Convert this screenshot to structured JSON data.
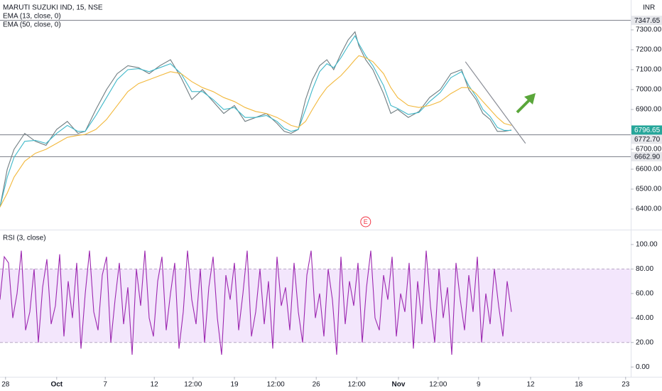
{
  "header": {
    "symbol": "MARUTI SUZUKI IND, 15, NSE",
    "currency": "INR",
    "indicators": [
      "EMA (13, close, 0)",
      "EMA (50, close, 0)"
    ]
  },
  "chart_data": [
    {
      "type": "line",
      "x": [
        0,
        1.7,
        3.3,
        5.8,
        8.3,
        10.8,
        13.3,
        15.8,
        18.3,
        20,
        22.5,
        25,
        27.5,
        30,
        32.5,
        35,
        37.5,
        40,
        42.5,
        45,
        47.5,
        50,
        52.5,
        55,
        57.5,
        60,
        62.5,
        65,
        66.7,
        68.3,
        70,
        71.7,
        73.3,
        75,
        76.7,
        78.3,
        80,
        81.7,
        83.3,
        84.2,
        85.8,
        87.5,
        90,
        91.7,
        93.3,
        95.8,
        98.3,
        100.8,
        103.3,
        105.8,
        108.3,
        110,
        111.7,
        113.3,
        115,
        116.7,
        118.3,
        120
      ],
      "series": [
        {
          "color": "#6f7c80",
          "values": [
            6410,
            6600,
            6700,
            6780,
            6740,
            6720,
            6800,
            6840,
            6780,
            6790,
            6900,
            7000,
            7080,
            7120,
            7110,
            7080,
            7120,
            7150,
            7060,
            6950,
            7000,
            6940,
            6880,
            6920,
            6840,
            6860,
            6880,
            6830,
            6790,
            6780,
            6800,
            6950,
            7050,
            7120,
            7150,
            7100,
            7180,
            7250,
            7290,
            7220,
            7150,
            7100,
            6980,
            6880,
            6900,
            6860,
            6890,
            6960,
            7000,
            7080,
            7100,
            7000,
            6950,
            6880,
            6850,
            6790,
            6790,
            6796.65
          ]
        },
        {
          "name": "EMA (13, close, 0)",
          "color": "#3fb8c9",
          "values": [
            6410,
            6560,
            6660,
            6740,
            6745,
            6730,
            6780,
            6820,
            6790,
            6790,
            6870,
            6960,
            7050,
            7100,
            7105,
            7090,
            7110,
            7130,
            7080,
            6990,
            6990,
            6950,
            6900,
            6910,
            6860,
            6860,
            6870,
            6840,
            6805,
            6790,
            6800,
            6900,
            7000,
            7090,
            7130,
            7110,
            7160,
            7220,
            7270,
            7230,
            7170,
            7120,
            7020,
            6920,
            6905,
            6875,
            6885,
            6940,
            6985,
            7060,
            7090,
            7020,
            6965,
            6900,
            6865,
            6810,
            6795,
            6795
          ]
        },
        {
          "name": "EMA (50, close, 0)",
          "color": "#f2b83c",
          "values": [
            6410,
            6480,
            6560,
            6640,
            6680,
            6700,
            6730,
            6760,
            6770,
            6775,
            6800,
            6850,
            6920,
            6990,
            7030,
            7050,
            7070,
            7090,
            7080,
            7040,
            7010,
            6990,
            6960,
            6940,
            6910,
            6890,
            6880,
            6860,
            6840,
            6820,
            6810,
            6840,
            6900,
            6960,
            7010,
            7040,
            7070,
            7110,
            7150,
            7170,
            7160,
            7140,
            7080,
            7010,
            6960,
            6920,
            6910,
            6920,
            6940,
            6980,
            7010,
            7010,
            6980,
            6940,
            6900,
            6860,
            6830,
            6820
          ]
        }
      ],
      "xlim": [
        0,
        148
      ],
      "xticks": [
        {
          "value": 1.3,
          "label": "28"
        },
        {
          "value": 13.3,
          "label": "Oct"
        },
        {
          "value": 24.7,
          "label": "7"
        },
        {
          "value": 36.2,
          "label": "12"
        },
        {
          "value": 45.3,
          "label": "12:00"
        },
        {
          "value": 55,
          "label": "19"
        },
        {
          "value": 64.7,
          "label": "12:00"
        },
        {
          "value": 74.2,
          "label": "26"
        },
        {
          "value": 83.7,
          "label": "12:00"
        },
        {
          "value": 93.5,
          "label": "Nov"
        },
        {
          "value": 102.8,
          "label": "12:00"
        },
        {
          "value": 112.3,
          "label": "9"
        },
        {
          "value": 124.5,
          "label": "12"
        },
        {
          "value": 135.8,
          "label": "18"
        },
        {
          "value": 146.8,
          "label": "23"
        }
      ],
      "ylim": [
        6300,
        7450
      ],
      "yticks": [
        {
          "value": 7300,
          "label": "7300.00"
        },
        {
          "value": 7200,
          "label": "7200.00"
        },
        {
          "value": 7100,
          "label": "7100.00"
        },
        {
          "value": 7000,
          "label": "7000.00"
        },
        {
          "value": 6900,
          "label": "6900.00"
        },
        {
          "value": 6700,
          "label": "6700.00"
        },
        {
          "value": 6600,
          "label": "6600.00"
        },
        {
          "value": 6500,
          "label": "6500.00"
        },
        {
          "value": 6400,
          "label": "6400.00"
        }
      ],
      "levels": [
        7347.65,
        {
          "value": 6772.7,
          "label": "6772.70"
        },
        {
          "value": 6662.9,
          "label": "6662.90"
        }
      ],
      "last_price": 6796.65,
      "trendline": {
        "x": [
          109.2,
          123.3
        ],
        "y": [
          7140,
          6730
        ]
      },
      "event": {
        "x": 85.8,
        "label": "E"
      }
    },
    {
      "type": "line",
      "title": "RSI (3, close)",
      "x": [
        0,
        1,
        2,
        3,
        4,
        5,
        6,
        7,
        8,
        9,
        10,
        11,
        12,
        13,
        14,
        15,
        16,
        17,
        18,
        19,
        20,
        21,
        22,
        23,
        24,
        25,
        26,
        27,
        28,
        29,
        30,
        31,
        32,
        33,
        34,
        35,
        36,
        37,
        38,
        39,
        40,
        41,
        42,
        43,
        44,
        45,
        46,
        47,
        48,
        49,
        50,
        51,
        52,
        53,
        54,
        55,
        56,
        57,
        58,
        59,
        60,
        61,
        62,
        63,
        64,
        65,
        66,
        67,
        68,
        69,
        70,
        71,
        72,
        73,
        74,
        75,
        76,
        77,
        78,
        79,
        80,
        81,
        82,
        83,
        84,
        85,
        86,
        87,
        88,
        89,
        90,
        91,
        92,
        93,
        94,
        95,
        96,
        97,
        98,
        99,
        100,
        101,
        102,
        103,
        104,
        105,
        106,
        107,
        108,
        109,
        110,
        111,
        112,
        113,
        114,
        115,
        116,
        117,
        118,
        119,
        120
      ],
      "series": [
        {
          "color": "#9c27b0",
          "values": [
            55,
            90,
            85,
            40,
            60,
            95,
            30,
            45,
            80,
            20,
            65,
            88,
            35,
            50,
            92,
            25,
            70,
            40,
            85,
            15,
            60,
            95,
            45,
            30,
            75,
            90,
            20,
            55,
            85,
            35,
            65,
            10,
            80,
            50,
            95,
            40,
            25,
            70,
            90,
            30,
            60,
            85,
            15,
            45,
            95,
            55,
            35,
            80,
            20,
            65,
            90,
            40,
            10,
            75,
            55,
            85,
            30,
            60,
            95,
            25,
            45,
            80,
            35,
            70,
            15,
            90,
            50,
            65,
            30,
            85,
            45,
            20,
            75,
            95,
            40,
            60,
            25,
            80,
            55,
            10,
            90,
            35,
            70,
            50,
            85,
            20,
            65,
            95,
            40,
            30,
            75,
            55,
            90,
            25,
            60,
            45,
            85,
            15,
            70,
            35,
            95,
            50,
            20,
            80,
            40,
            65,
            10,
            85,
            55,
            30,
            75,
            45,
            90,
            20,
            60,
            35,
            80,
            50,
            25,
            70,
            45
          ]
        }
      ],
      "xlim": [
        0,
        148
      ],
      "ylim": [
        -8,
        111
      ],
      "yticks": [
        {
          "value": 100,
          "label": "100.00"
        },
        {
          "value": 80,
          "label": "80.00"
        },
        {
          "value": 60,
          "label": "60.00"
        },
        {
          "value": 40,
          "label": "40.00"
        },
        {
          "value": 20,
          "label": "20.00"
        },
        {
          "value": 0,
          "label": "0.00"
        }
      ],
      "band": [
        20,
        80
      ],
      "band_color": "#f3e6fc"
    }
  ]
}
